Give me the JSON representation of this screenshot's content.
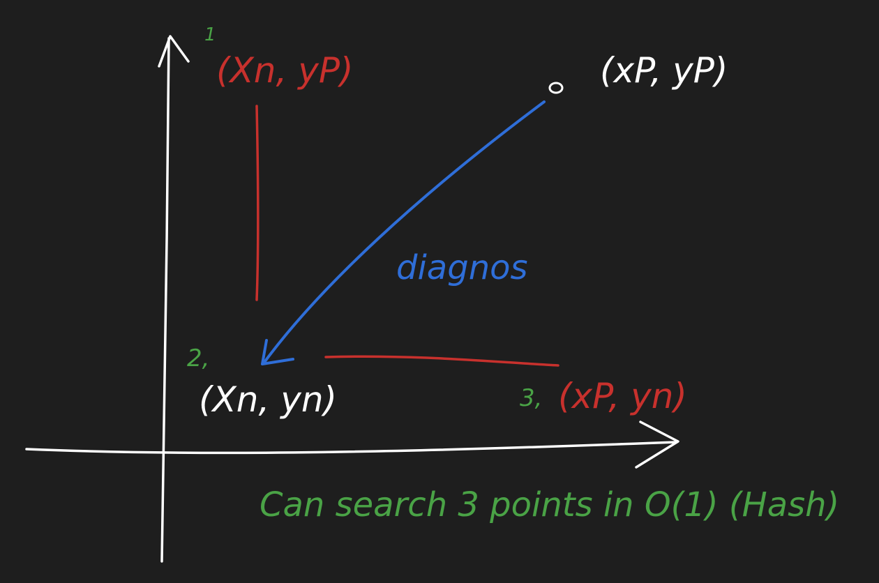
{
  "colors": {
    "background": "#1e1e1e",
    "axis": "#ffffff",
    "red": "#c8312d",
    "blue": "#2f6ed8",
    "green": "#4aa346",
    "white_text": "#ffffff"
  },
  "labels": {
    "top_left_num": "1",
    "top_left": "(Xn, yP)",
    "top_right": "(xP, yP)",
    "bottom_left_num": "2,",
    "bottom_left": "(Xn, yn)",
    "bottom_right_num": "3,",
    "bottom_right": "(xP, yn)",
    "diagonal": "diagnos",
    "caption": "Can search 3 points in O(1) (Hash)"
  }
}
